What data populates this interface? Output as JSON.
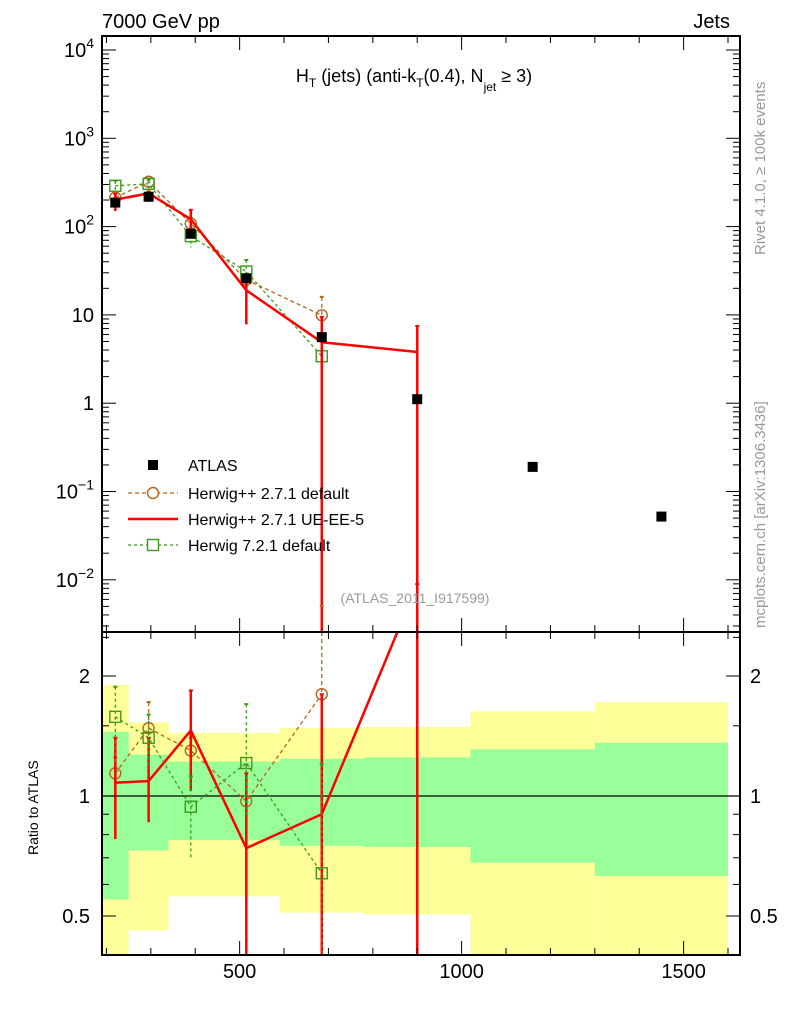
{
  "header": {
    "left": "7000 GeV pp",
    "right": "Jets"
  },
  "side": {
    "rivet": "Rivet 4.1.0, ≥ 100k events",
    "mcplots": "mcplots.cern.ch [arXiv:1306.3436]"
  },
  "chart_data": [
    {
      "type": "line",
      "title": {
        "main": "H",
        "sub1": "T",
        "mid": " (jets) (anti-k",
        "sub2": "T",
        "mid2": "(0.4), N",
        "sub3": "jet",
        "end": " ≥ 3)"
      },
      "analysis_label": "(ATLAS_2011_I917599)",
      "yscale": "log",
      "xlim": [
        190,
        1627
      ],
      "ylim": [
        0.0026,
        14500
      ],
      "ytick_labels": [
        {
          "v": 10000,
          "base": "10",
          "exp": "4"
        },
        {
          "v": 1000,
          "base": "10",
          "exp": "3"
        },
        {
          "v": 100,
          "base": "10",
          "exp": "2"
        },
        {
          "v": 10,
          "base": "10",
          "exp": ""
        },
        {
          "v": 1,
          "base": "1",
          "exp": ""
        },
        {
          "v": 0.1,
          "base": "10",
          "exp": "−1"
        },
        {
          "v": 0.01,
          "base": "10",
          "exp": "−2"
        }
      ],
      "legend_position": "bottom-left",
      "series": [
        {
          "name": "ATLAS",
          "color": "#000000",
          "style": "square",
          "x": [
            220,
            295,
            390,
            515,
            685,
            900,
            1160,
            1450
          ],
          "y": [
            187,
            218,
            83,
            26,
            5.6,
            1.11,
            0.19,
            0.052
          ]
        },
        {
          "name": "Herwig++ 2.7.1 default",
          "color": "#b5651d",
          "style": "circle-dashed",
          "x": [
            220,
            295,
            390,
            515,
            685
          ],
          "y": [
            213,
            322,
            108,
            25,
            9.9
          ],
          "err": [
            [
              190,
              240
            ],
            [
              290,
              350
            ],
            [
              95,
              125
            ],
            [
              22,
              29
            ],
            [
              0,
              16
            ]
          ]
        },
        {
          "name": "Herwig++ 2.7.1 UE-EE-5",
          "color": "#ff0000",
          "style": "solid",
          "x": [
            220,
            295,
            390,
            515,
            685,
            900
          ],
          "y": [
            202,
            238,
            121,
            19,
            4.9,
            3.8
          ],
          "err": [
            [
              150,
              235
            ],
            [
              190,
              250
            ],
            [
              80,
              155
            ],
            [
              7.8,
              26
            ],
            [
              0,
              9.5
            ],
            [
              0,
              7.5
            ]
          ]
        },
        {
          "name": "Herwig 7.2.1 default",
          "color": "#3a9a1a",
          "style": "square-dashed",
          "x": [
            220,
            295,
            390,
            515,
            685
          ],
          "y": [
            290,
            305,
            78,
            31,
            3.4
          ],
          "err": [
            [
              250,
              330
            ],
            [
              270,
              340
            ],
            [
              58,
              95
            ],
            [
              24,
              42
            ],
            [
              0,
              5
            ]
          ]
        }
      ]
    },
    {
      "type": "line",
      "ylabel": "Ratio to ATLAS",
      "yscale": "log",
      "xlim": [
        190,
        1627
      ],
      "ylim": [
        0.4,
        2.58
      ],
      "xtick_labels": [
        {
          "v": 500,
          "label": "500"
        },
        {
          "v": 1000,
          "label": "1000"
        },
        {
          "v": 1500,
          "label": "1500"
        }
      ],
      "ytick_labels": [
        {
          "v": 2,
          "label": "2"
        },
        {
          "v": 1,
          "label": "1"
        },
        {
          "v": 0.5,
          "label": "0.5"
        }
      ],
      "bands": {
        "bin_edges": [
          190,
          250,
          340,
          440,
          590,
          780,
          1020,
          1300,
          1600
        ],
        "total_uncertainty": {
          "color": "#ffff99",
          "low": [
            0.35,
            0.46,
            0.56,
            0.56,
            0.51,
            0.505,
            0.35,
            0.35
          ],
          "high": [
            1.9,
            1.53,
            1.44,
            1.44,
            1.48,
            1.49,
            1.63,
            1.72
          ]
        },
        "stat_uncertainty": {
          "color": "#99ff99",
          "low": [
            0.55,
            0.73,
            0.775,
            0.775,
            0.75,
            0.745,
            0.68,
            0.63
          ],
          "high": [
            1.45,
            1.27,
            1.22,
            1.22,
            1.24,
            1.25,
            1.31,
            1.36
          ]
        }
      },
      "series": [
        {
          "name": "Herwig++ 2.7.1 default",
          "color": "#b5651d",
          "x": [
            220,
            295,
            390,
            515,
            685
          ],
          "y": [
            1.14,
            1.48,
            1.3,
            0.97,
            1.8
          ],
          "err": [
            [
              1.05,
              1.25
            ],
            [
              1.15,
              1.72
            ],
            [
              1.2,
              1.4
            ],
            [
              0.85,
              1.2
            ],
            [
              1.2,
              3.0
            ]
          ]
        },
        {
          "name": "Herwig++ 2.7.1 UE-EE-5",
          "color": "#ff0000",
          "x": [
            220,
            295,
            390,
            515,
            685,
            900
          ],
          "y": [
            1.08,
            1.09,
            1.46,
            0.74,
            0.9,
            3.4
          ],
          "err": [
            [
              0.78,
              1.4
            ],
            [
              0.86,
              1.4
            ],
            [
              1.03,
              1.84
            ],
            [
              0.3,
              1.14
            ],
            [
              0.3,
              1.8
            ],
            [
              0.3,
              3.4
            ]
          ]
        },
        {
          "name": "Herwig 7.2.1 default",
          "color": "#3a9a1a",
          "x": [
            220,
            295,
            390,
            515,
            685
          ],
          "y": [
            1.58,
            1.4,
            0.94,
            1.21,
            0.64
          ],
          "err": [
            [
              1.2,
              1.88
            ],
            [
              1.2,
              1.6
            ],
            [
              0.7,
              1.12
            ],
            [
              0.9,
              1.7
            ],
            [
              0.3,
              1.2
            ]
          ]
        }
      ]
    }
  ]
}
